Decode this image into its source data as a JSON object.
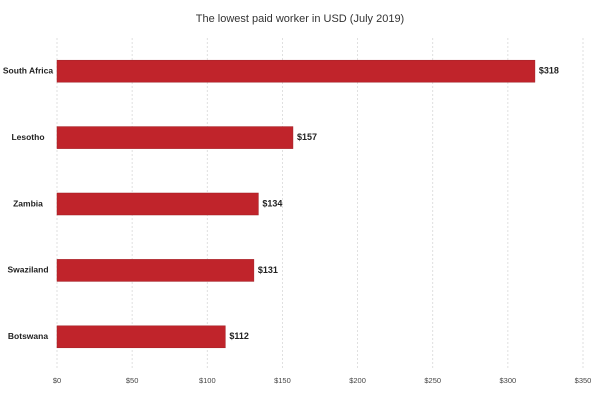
{
  "chart_data": {
    "type": "bar",
    "orientation": "horizontal",
    "title": "The lowest paid worker in USD (July 2019)",
    "categories": [
      "South Africa",
      "Lesotho",
      "Zambia",
      "Swaziland",
      "Botswana"
    ],
    "values": [
      318,
      157,
      134,
      131,
      112
    ],
    "value_labels": [
      "$318",
      "$157",
      "$134",
      "$131",
      "$112"
    ],
    "color": "#c0242b",
    "xlim": [
      0,
      350
    ],
    "xticks": [
      {
        "value": 0,
        "label": "$0"
      },
      {
        "value": 50,
        "label": "$50"
      },
      {
        "value": 100,
        "label": "$100"
      },
      {
        "value": 150,
        "label": "$150"
      },
      {
        "value": 200,
        "label": "$200"
      },
      {
        "value": 250,
        "label": "$250"
      },
      {
        "value": 300,
        "label": "$300"
      },
      {
        "value": 350,
        "label": "$350"
      }
    ],
    "grid": true
  }
}
